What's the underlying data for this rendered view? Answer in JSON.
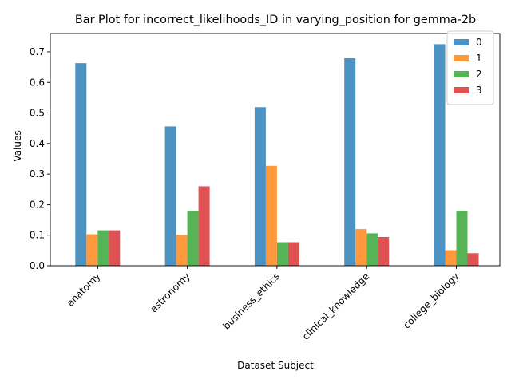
{
  "chart_data": {
    "type": "bar",
    "title": "Bar Plot for incorrect_likelihoods_ID in varying_position for gemma-2b",
    "xlabel": "Dataset Subject",
    "ylabel": "Values",
    "categories": [
      "anatomy",
      "astronomy",
      "business_ethics",
      "clinical_knowledge",
      "college_biology"
    ],
    "ylim": [
      0,
      0.76
    ],
    "yticks": [
      "0.0",
      "0.1",
      "0.2",
      "0.3",
      "0.4",
      "0.5",
      "0.6",
      "0.7"
    ],
    "legend_position": "top-right",
    "grid": false,
    "series": [
      {
        "name": "0",
        "color": "#1f77b4",
        "values": [
          0.663,
          0.456,
          0.519,
          0.679,
          0.725
        ]
      },
      {
        "name": "1",
        "color": "#ff7f0e",
        "values": [
          0.103,
          0.101,
          0.327,
          0.12,
          0.051
        ]
      },
      {
        "name": "2",
        "color": "#2ca02c",
        "values": [
          0.116,
          0.18,
          0.077,
          0.106,
          0.18
        ]
      },
      {
        "name": "3",
        "color": "#d62728",
        "values": [
          0.116,
          0.26,
          0.077,
          0.094,
          0.041
        ]
      }
    ]
  }
}
